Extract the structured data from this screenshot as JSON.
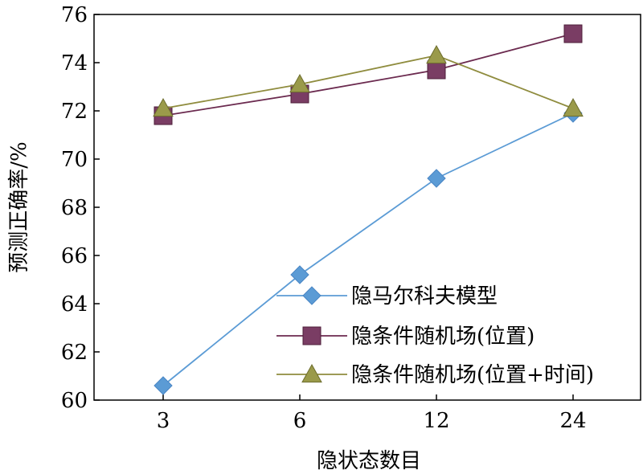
{
  "chart_data": {
    "type": "line",
    "xlabel": "隐状态数目",
    "ylabel": "预测正确率/%",
    "categories": [
      "3",
      "6",
      "12",
      "24"
    ],
    "ylim": [
      60,
      76
    ],
    "yticks": [
      60,
      62,
      64,
      66,
      68,
      70,
      72,
      74,
      76
    ],
    "grid": false,
    "legend_position": "bottom-right",
    "series": [
      {
        "name": "隐马尔科夫模型",
        "marker": "diamond",
        "line_color": "#5b9bd5",
        "marker_color": "#5b9bd5",
        "values": [
          60.6,
          65.2,
          69.2,
          71.9
        ]
      },
      {
        "name": "隐条件随机场(位置)",
        "marker": "square",
        "line_color": "#6b2a4f",
        "marker_color": "#7a3d64",
        "values": [
          71.8,
          72.7,
          73.7,
          75.2
        ]
      },
      {
        "name": "隐条件随机场(位置+时间)",
        "marker": "triangle",
        "line_color": "#8f8c3e",
        "marker_color": "#9a9a4a",
        "values": [
          72.1,
          73.1,
          74.3,
          72.1
        ]
      }
    ]
  }
}
